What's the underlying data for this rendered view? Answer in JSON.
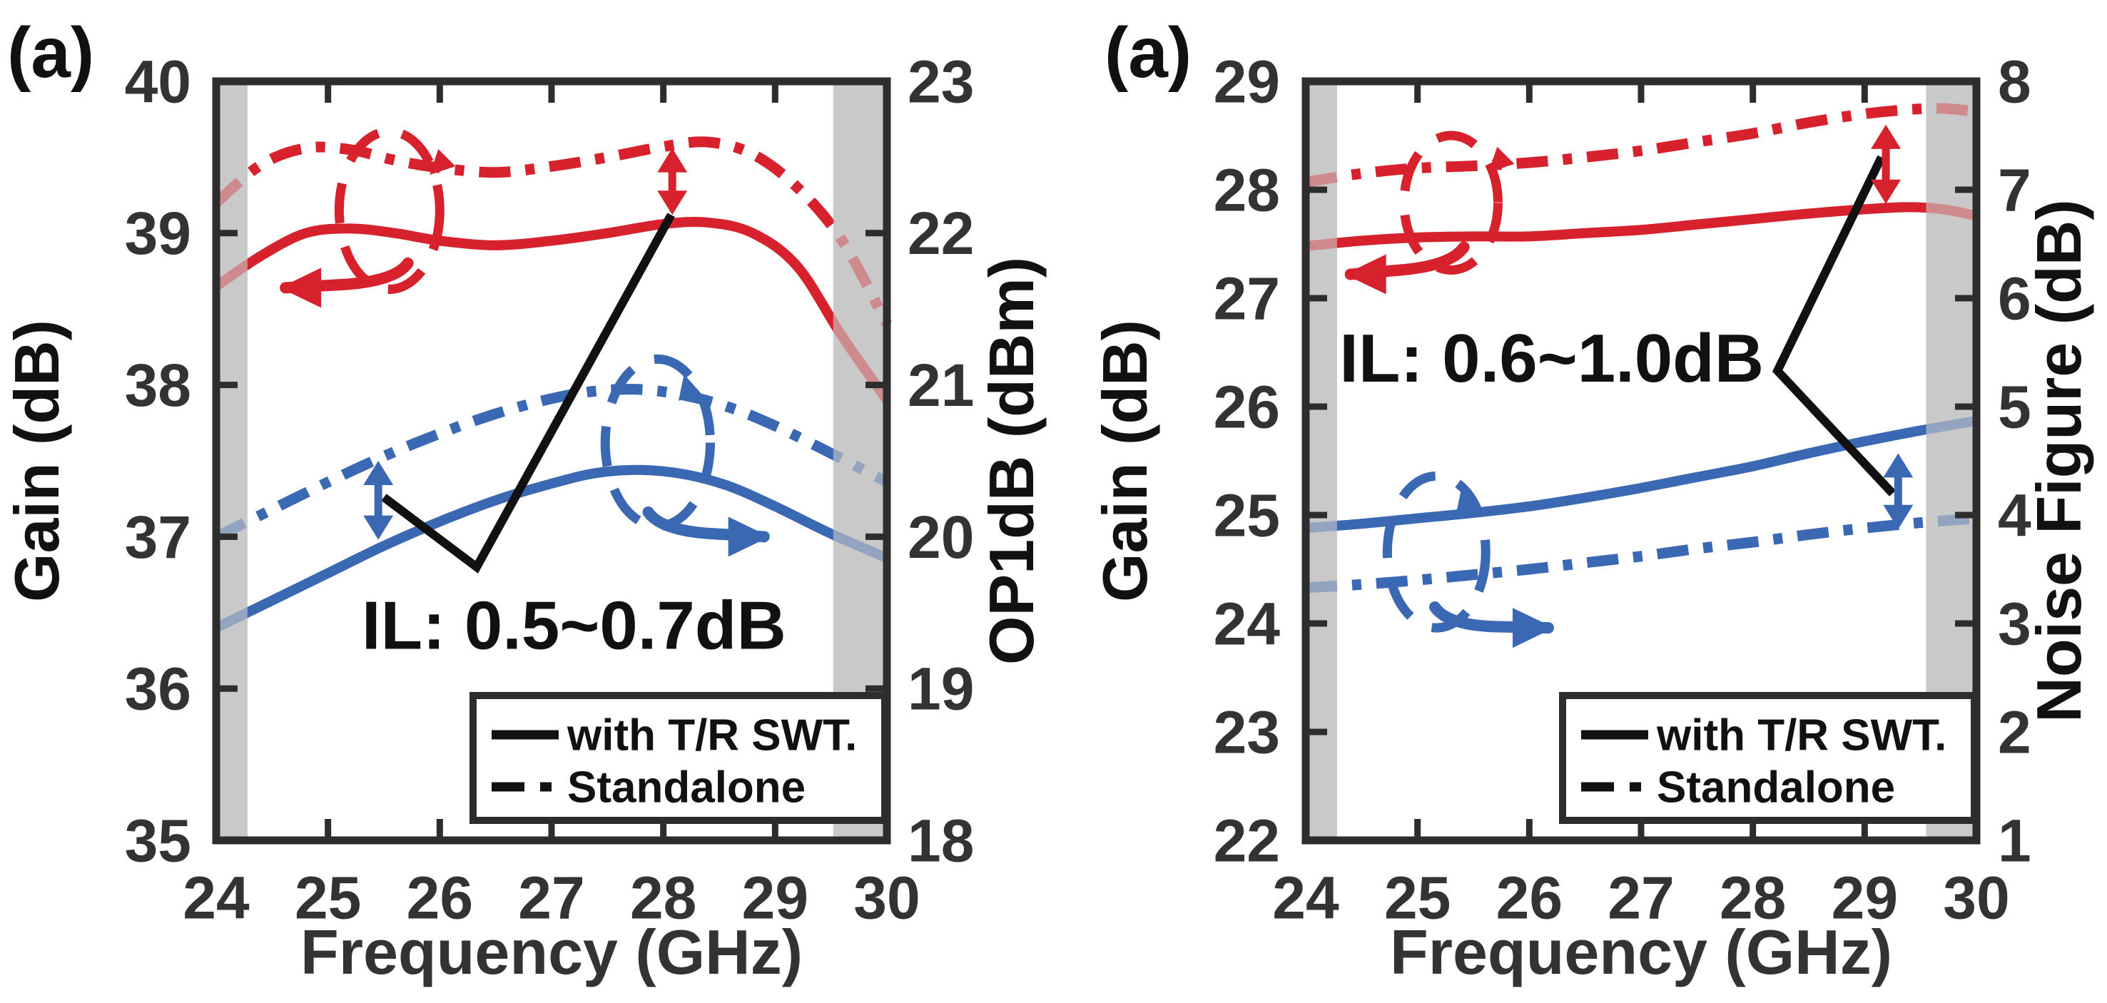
{
  "colors": {
    "red": "#d7222d",
    "blue": "#3a68b3",
    "band": "#c9c9c9",
    "frame": "#2d2d2d",
    "tick_text": "#333333",
    "annotation": "#111111",
    "legend_bg": "#ffffff"
  },
  "legend": {
    "items": [
      {
        "label": "with T/R SWT.",
        "style": "solid"
      },
      {
        "label": "Standalone",
        "style": "dashdot"
      }
    ]
  },
  "chart_data": [
    {
      "panel_label": "(a)",
      "type": "line",
      "x_axis": {
        "label": "Frequency (GHz)",
        "min": 24,
        "max": 30,
        "ticks": [
          24,
          25,
          26,
          27,
          28,
          29,
          30
        ]
      },
      "left_axis": {
        "label": "Gain (dB)",
        "min": 35,
        "max": 40,
        "ticks": [
          35,
          36,
          37,
          38,
          39,
          40
        ]
      },
      "right_axis": {
        "label": "OP1dB (dBm)",
        "min": 18,
        "max": 23,
        "ticks": [
          18,
          19,
          20,
          21,
          22,
          23
        ]
      },
      "shaded_bands": [
        [
          24,
          24.28
        ],
        [
          29.52,
          30
        ]
      ],
      "il_annotation": {
        "text": "IL: 0.5~0.7dB",
        "x": 27.2,
        "y": 36.42,
        "axis": "left"
      },
      "callout_polyline": [
        [
          25.5,
          37.26
        ],
        [
          26.33,
          36.8
        ],
        [
          28.07,
          39.12
        ]
      ],
      "double_arrows": [
        {
          "color": "red",
          "x": 28.08,
          "axis": "left",
          "y0": 39.12,
          "y1": 39.56
        },
        {
          "color": "blue",
          "x": 25.45,
          "axis": "right",
          "y0": 19.98,
          "y1": 20.5
        }
      ],
      "group_markers": [
        {
          "color": "red",
          "reads_axis": "left",
          "ellipse": {
            "cx": 25.55,
            "cy": 39.15,
            "rx": 0.45,
            "ry": 0.52,
            "axis": "left"
          },
          "arrow": {
            "x0": 25.6,
            "y0": 38.68,
            "x1": 24.62,
            "y1": 38.64,
            "axis": "left",
            "dir": "left"
          }
        },
        {
          "color": "blue",
          "reads_axis": "right",
          "ellipse": {
            "cx": 27.95,
            "cy": 20.62,
            "rx": 0.47,
            "ry": 0.55,
            "axis": "right"
          },
          "arrow": {
            "x0": 27.98,
            "y0": 20.04,
            "x1": 28.9,
            "y1": 20.0,
            "axis": "right",
            "dir": "right"
          }
        }
      ],
      "series": [
        {
          "id": "gain-standalone",
          "legend": "Standalone",
          "color": "red",
          "style": "dashdot",
          "axis": "left",
          "points": [
            [
              24,
              39.2
            ],
            [
              24.4,
              39.45
            ],
            [
              24.8,
              39.56
            ],
            [
              25.2,
              39.55
            ],
            [
              25.6,
              39.48
            ],
            [
              26,
              39.43
            ],
            [
              26.5,
              39.4
            ],
            [
              27,
              39.44
            ],
            [
              27.5,
              39.5
            ],
            [
              28,
              39.57
            ],
            [
              28.4,
              39.6
            ],
            [
              28.8,
              39.52
            ],
            [
              29.2,
              39.3
            ],
            [
              29.6,
              38.95
            ],
            [
              30,
              38.4
            ]
          ]
        },
        {
          "id": "gain-with-trswt",
          "legend": "with T/R SWT.",
          "color": "red",
          "style": "solid",
          "axis": "left",
          "points": [
            [
              24,
              38.65
            ],
            [
              24.4,
              38.85
            ],
            [
              24.8,
              39.0
            ],
            [
              25.2,
              39.03
            ],
            [
              25.6,
              39.0
            ],
            [
              26,
              38.95
            ],
            [
              26.5,
              38.92
            ],
            [
              27,
              38.95
            ],
            [
              27.5,
              39.0
            ],
            [
              28,
              39.06
            ],
            [
              28.4,
              39.07
            ],
            [
              28.8,
              39.0
            ],
            [
              29.2,
              38.78
            ],
            [
              29.6,
              38.32
            ],
            [
              30,
              37.9
            ]
          ]
        },
        {
          "id": "op1db-standalone",
          "legend": "Standalone",
          "color": "blue",
          "style": "dashdot",
          "axis": "right",
          "points": [
            [
              24,
              20.0
            ],
            [
              24.5,
              20.18
            ],
            [
              25,
              20.36
            ],
            [
              25.5,
              20.53
            ],
            [
              26,
              20.68
            ],
            [
              26.5,
              20.81
            ],
            [
              27,
              20.91
            ],
            [
              27.4,
              20.96
            ],
            [
              27.8,
              20.97
            ],
            [
              28.2,
              20.93
            ],
            [
              28.6,
              20.85
            ],
            [
              29,
              20.73
            ],
            [
              29.5,
              20.55
            ],
            [
              30,
              20.36
            ]
          ]
        },
        {
          "id": "op1db-with-trswt",
          "legend": "with T/R SWT.",
          "color": "blue",
          "style": "solid",
          "axis": "right",
          "points": [
            [
              24,
              19.4
            ],
            [
              24.5,
              19.58
            ],
            [
              25,
              19.76
            ],
            [
              25.5,
              19.94
            ],
            [
              26,
              20.1
            ],
            [
              26.5,
              20.24
            ],
            [
              27,
              20.35
            ],
            [
              27.4,
              20.42
            ],
            [
              27.8,
              20.44
            ],
            [
              28.2,
              20.41
            ],
            [
              28.6,
              20.33
            ],
            [
              29,
              20.2
            ],
            [
              29.5,
              20.02
            ],
            [
              30,
              19.86
            ]
          ]
        }
      ]
    },
    {
      "panel_label": "(a)",
      "type": "line",
      "x_axis": {
        "label": "Frequency (GHz)",
        "min": 24,
        "max": 30,
        "ticks": [
          24,
          25,
          26,
          27,
          28,
          29,
          30
        ]
      },
      "left_axis": {
        "label": "Gain (dB)",
        "min": 22,
        "max": 29,
        "ticks": [
          22,
          23,
          24,
          25,
          26,
          27,
          28,
          29
        ]
      },
      "right_axis": {
        "label": "Noise Figure (dB)",
        "min": 1,
        "max": 8,
        "ticks": [
          1,
          2,
          3,
          4,
          5,
          6,
          7,
          8
        ]
      },
      "shaded_bands": [
        [
          24,
          24.28
        ],
        [
          29.55,
          30
        ]
      ],
      "il_annotation": {
        "text": "IL: 0.6~1.0dB",
        "x": 26.2,
        "y": 26.45,
        "axis": "left"
      },
      "callout_polyline": [
        [
          29.15,
          28.3
        ],
        [
          28.22,
          26.33
        ],
        [
          29.25,
          25.2
        ]
      ],
      "double_arrows": [
        {
          "color": "red",
          "x": 29.19,
          "axis": "left",
          "y0": 27.87,
          "y1": 28.6
        },
        {
          "color": "blue",
          "x": 29.3,
          "axis": "right",
          "y0": 3.87,
          "y1": 4.57
        }
      ],
      "group_markers": [
        {
          "color": "red",
          "reads_axis": "left",
          "ellipse": {
            "cx": 25.3,
            "cy": 27.88,
            "rx": 0.42,
            "ry": 0.62,
            "axis": "left"
          },
          "arrow": {
            "x0": 25.3,
            "y0": 27.3,
            "x1": 24.4,
            "y1": 27.22,
            "axis": "left",
            "dir": "left"
          }
        },
        {
          "color": "blue",
          "reads_axis": "right",
          "ellipse": {
            "cx": 25.17,
            "cy": 3.66,
            "rx": 0.44,
            "ry": 0.7,
            "axis": "right"
          },
          "arrow": {
            "x0": 25.27,
            "y0": 2.98,
            "x1": 26.17,
            "y1": 2.96,
            "axis": "right",
            "dir": "right"
          }
        }
      ],
      "series": [
        {
          "id": "gain-standalone",
          "legend": "Standalone",
          "color": "red",
          "style": "dashdot",
          "axis": "left",
          "points": [
            [
              24,
              28.07
            ],
            [
              24.5,
              28.15
            ],
            [
              25,
              28.2
            ],
            [
              25.5,
              28.22
            ],
            [
              26,
              28.25
            ],
            [
              26.5,
              28.3
            ],
            [
              27,
              28.36
            ],
            [
              27.5,
              28.44
            ],
            [
              28,
              28.52
            ],
            [
              28.5,
              28.62
            ],
            [
              29,
              28.7
            ],
            [
              29.4,
              28.74
            ],
            [
              29.7,
              28.75
            ],
            [
              30,
              28.72
            ]
          ]
        },
        {
          "id": "gain-with-trswt",
          "legend": "with T/R SWT.",
          "color": "red",
          "style": "solid",
          "axis": "left",
          "points": [
            [
              24,
              27.48
            ],
            [
              24.5,
              27.53
            ],
            [
              25,
              27.56
            ],
            [
              25.5,
              27.57
            ],
            [
              26,
              27.57
            ],
            [
              26.5,
              27.6
            ],
            [
              27,
              27.63
            ],
            [
              27.5,
              27.68
            ],
            [
              28,
              27.73
            ],
            [
              28.5,
              27.78
            ],
            [
              29,
              27.82
            ],
            [
              29.4,
              27.84
            ],
            [
              29.7,
              27.82
            ],
            [
              30,
              27.76
            ]
          ]
        },
        {
          "id": "nf-with-trswt",
          "legend": "with T/R SWT.",
          "color": "blue",
          "style": "solid",
          "axis": "right",
          "points": [
            [
              24,
              3.88
            ],
            [
              24.5,
              3.92
            ],
            [
              25,
              3.97
            ],
            [
              25.5,
              4.02
            ],
            [
              26,
              4.08
            ],
            [
              26.5,
              4.16
            ],
            [
              27,
              4.25
            ],
            [
              27.5,
              4.35
            ],
            [
              28,
              4.45
            ],
            [
              28.5,
              4.57
            ],
            [
              29,
              4.68
            ],
            [
              29.5,
              4.78
            ],
            [
              30,
              4.87
            ]
          ]
        },
        {
          "id": "nf-standalone",
          "legend": "Standalone",
          "color": "blue",
          "style": "dashdot",
          "axis": "right",
          "points": [
            [
              24,
              3.33
            ],
            [
              24.5,
              3.36
            ],
            [
              25,
              3.4
            ],
            [
              25.5,
              3.45
            ],
            [
              26,
              3.5
            ],
            [
              26.5,
              3.56
            ],
            [
              27,
              3.62
            ],
            [
              27.5,
              3.69
            ],
            [
              28,
              3.75
            ],
            [
              28.5,
              3.82
            ],
            [
              29,
              3.88
            ],
            [
              29.5,
              3.93
            ],
            [
              30,
              3.97
            ]
          ]
        }
      ]
    }
  ]
}
